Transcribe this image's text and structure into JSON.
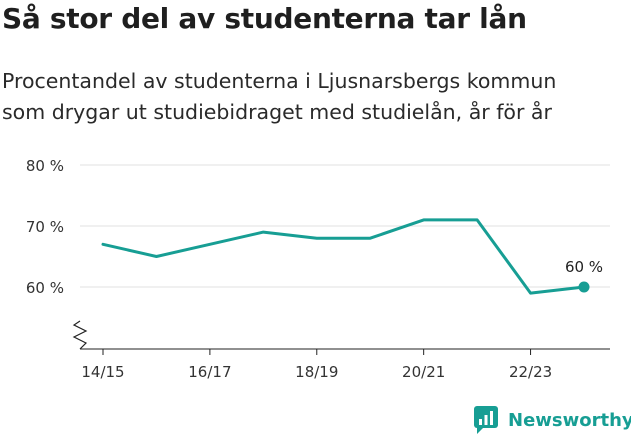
{
  "header": {
    "title": "Så stor del av studenterna tar lån",
    "subtitle_line1": "Procentandel av studenterna i Ljusnarsbergs kommun",
    "subtitle_line2": "som drygar ut studiebidraget med studielån, år för år"
  },
  "chart_data": {
    "type": "line",
    "x": [
      "14/15",
      "15/16",
      "16/17",
      "17/18",
      "18/19",
      "19/20",
      "20/21",
      "21/22",
      "22/23",
      "23/24"
    ],
    "x_tick_labels": [
      "14/15",
      "16/17",
      "18/19",
      "20/21",
      "22/23"
    ],
    "series": [
      {
        "values": [
          67,
          65,
          67,
          69,
          68,
          68,
          71,
          71,
          59,
          60
        ]
      }
    ],
    "y_ticks": [
      60,
      70,
      80
    ],
    "y_tick_labels": [
      "60 %",
      "70 %",
      "80 %"
    ],
    "ylim": [
      50,
      80
    ],
    "axis_break": true,
    "grid": true,
    "end_label": "60 %",
    "colors": {
      "line": "#179e94",
      "grid": "#e2e2e2",
      "axis": "#222222"
    }
  },
  "brand": {
    "name": "Newsworthy",
    "color": "#179e94",
    "icon": "bar-chart-icon"
  }
}
